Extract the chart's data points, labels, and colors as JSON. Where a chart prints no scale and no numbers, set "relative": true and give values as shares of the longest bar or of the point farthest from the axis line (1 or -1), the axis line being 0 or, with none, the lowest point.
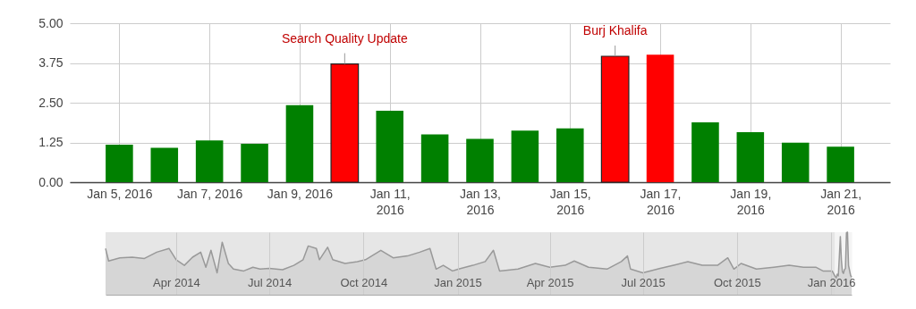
{
  "chart_data": [
    {
      "type": "bar",
      "x": [
        "2016-01-05",
        "2016-01-06",
        "2016-01-07",
        "2016-01-08",
        "2016-01-09",
        "2016-01-10",
        "2016-01-11",
        "2016-01-12",
        "2016-01-13",
        "2016-01-14",
        "2016-01-15",
        "2016-01-16",
        "2016-01-17",
        "2016-01-18",
        "2016-01-19",
        "2016-01-20",
        "2016-01-21"
      ],
      "values": [
        1.18,
        1.08,
        1.31,
        1.21,
        2.42,
        3.72,
        2.25,
        1.5,
        1.36,
        1.62,
        1.69,
        3.96,
        4.01,
        1.88,
        1.57,
        1.24,
        1.12
      ],
      "colors": [
        "#008000",
        "#008000",
        "#008000",
        "#008000",
        "#008000",
        "#ff0000",
        "#008000",
        "#008000",
        "#008000",
        "#008000",
        "#008000",
        "#ff0000",
        "#ff0000",
        "#008000",
        "#008000",
        "#008000",
        "#008000"
      ],
      "xlim": [
        "2016-01-04",
        "2016-01-22"
      ],
      "xticks": [
        {
          "value": "2016-01-05",
          "label": "Jan 5, 2016"
        },
        {
          "value": "2016-01-07",
          "label": "Jan 7, 2016"
        },
        {
          "value": "2016-01-09",
          "label": "Jan 9, 2016"
        },
        {
          "value": "2016-01-11",
          "label": "Jan 11, 2016"
        },
        {
          "value": "2016-01-13",
          "label": "Jan 13, 2016"
        },
        {
          "value": "2016-01-15",
          "label": "Jan 15, 2016"
        },
        {
          "value": "2016-01-17",
          "label": "Jan 17, 2016"
        },
        {
          "value": "2016-01-19",
          "label": "Jan 19, 2016"
        },
        {
          "value": "2016-01-21",
          "label": "Jan 21, 2016"
        }
      ],
      "ylim": [
        0,
        5
      ],
      "yticks": [
        {
          "value": 0,
          "label": "0.00"
        },
        {
          "value": 1.25,
          "label": "1.25"
        },
        {
          "value": 2.5,
          "label": "2.50"
        },
        {
          "value": 3.75,
          "label": "3.75"
        },
        {
          "value": 5,
          "label": "5.00"
        }
      ],
      "grid": true,
      "annotations": [
        {
          "text": "Search Quality Update",
          "x": "2016-01-10",
          "y": 3.72
        },
        {
          "text": "Burj Khalifa",
          "x": "2016-01-16",
          "y": 3.96
        }
      ]
    },
    {
      "type": "area",
      "relative": true,
      "color": "#999999",
      "x": [
        "2014-01-22",
        "2014-01-25",
        "2014-02-05",
        "2014-02-17",
        "2014-03-01",
        "2014-03-13",
        "2014-03-25",
        "2014-04-01",
        "2014-04-09",
        "2014-04-17",
        "2014-04-25",
        "2014-04-30",
        "2014-05-05",
        "2014-05-11",
        "2014-05-16",
        "2014-05-22",
        "2014-05-27",
        "2014-06-06",
        "2014-06-15",
        "2014-06-22",
        "2014-07-01",
        "2014-07-14",
        "2014-07-25",
        "2014-08-03",
        "2014-08-08",
        "2014-08-16",
        "2014-08-19",
        "2014-08-27",
        "2014-09-01",
        "2014-09-13",
        "2014-09-25",
        "2014-10-03",
        "2014-10-18",
        "2014-10-30",
        "2014-11-13",
        "2014-11-25",
        "2014-12-05",
        "2014-12-11",
        "2014-12-18",
        "2014-12-27",
        "2015-01-02",
        "2015-01-16",
        "2015-01-28",
        "2015-02-05",
        "2015-02-11",
        "2015-03-01",
        "2015-03-18",
        "2015-04-01",
        "2015-04-16",
        "2015-04-25",
        "2015-05-09",
        "2015-05-27",
        "2015-06-10",
        "2015-06-16",
        "2015-06-19",
        "2015-07-01",
        "2015-07-18",
        "2015-08-02",
        "2015-08-14",
        "2015-08-28",
        "2015-09-12",
        "2015-09-22",
        "2015-09-28",
        "2015-10-05",
        "2015-10-20",
        "2015-11-06",
        "2015-11-21",
        "2015-12-05",
        "2015-12-17",
        "2015-12-24",
        "2016-01-02",
        "2016-01-05",
        "2016-01-06",
        "2016-01-07",
        "2016-01-08",
        "2016-01-09",
        "2016-01-10",
        "2016-01-11",
        "2016-01-12",
        "2016-01-13",
        "2016-01-14",
        "2016-01-15",
        "2016-01-16",
        "2016-01-17",
        "2016-01-18",
        "2016-01-19",
        "2016-01-20",
        "2016-01-21"
      ],
      "values": [
        0.74,
        0.54,
        0.59,
        0.6,
        0.58,
        0.68,
        0.74,
        0.56,
        0.47,
        0.6,
        0.68,
        0.44,
        0.71,
        0.35,
        0.84,
        0.5,
        0.41,
        0.38,
        0.44,
        0.41,
        0.42,
        0.4,
        0.47,
        0.56,
        0.78,
        0.74,
        0.56,
        0.76,
        0.56,
        0.5,
        0.53,
        0.56,
        0.71,
        0.59,
        0.62,
        0.68,
        0.74,
        0.41,
        0.47,
        0.38,
        0.41,
        0.47,
        0.53,
        0.71,
        0.38,
        0.41,
        0.5,
        0.44,
        0.47,
        0.54,
        0.44,
        0.41,
        0.53,
        0.62,
        0.41,
        0.35,
        0.42,
        0.48,
        0.53,
        0.47,
        0.47,
        0.59,
        0.41,
        0.5,
        0.41,
        0.44,
        0.47,
        0.44,
        0.44,
        0.38,
        0.38,
        0.29,
        0.27,
        0.33,
        0.3,
        0.6,
        0.93,
        0.56,
        0.37,
        0.34,
        0.4,
        0.42,
        0.99,
        1,
        0.47,
        0.39,
        0.31,
        0.28
      ],
      "xlim": [
        "2014-01-22",
        "2016-01-21"
      ],
      "xticks": [
        {
          "value": "2014-04-01",
          "label": "Apr 2014"
        },
        {
          "value": "2014-07-01",
          "label": "Jul 2014"
        },
        {
          "value": "2014-10-01",
          "label": "Oct 2014"
        },
        {
          "value": "2015-01-01",
          "label": "Jan 2015"
        },
        {
          "value": "2015-04-01",
          "label": "Apr 2015"
        },
        {
          "value": "2015-07-01",
          "label": "Jul 2015"
        },
        {
          "value": "2015-10-01",
          "label": "Oct 2015"
        },
        {
          "value": "2016-01-01",
          "label": "Jan 2016"
        }
      ],
      "grid": "x",
      "bands": [
        {
          "axis": "x",
          "from": "2016-01-04T12:00",
          "to": "2016-01-21T12:00",
          "color": "#f4f4f4"
        }
      ]
    }
  ]
}
